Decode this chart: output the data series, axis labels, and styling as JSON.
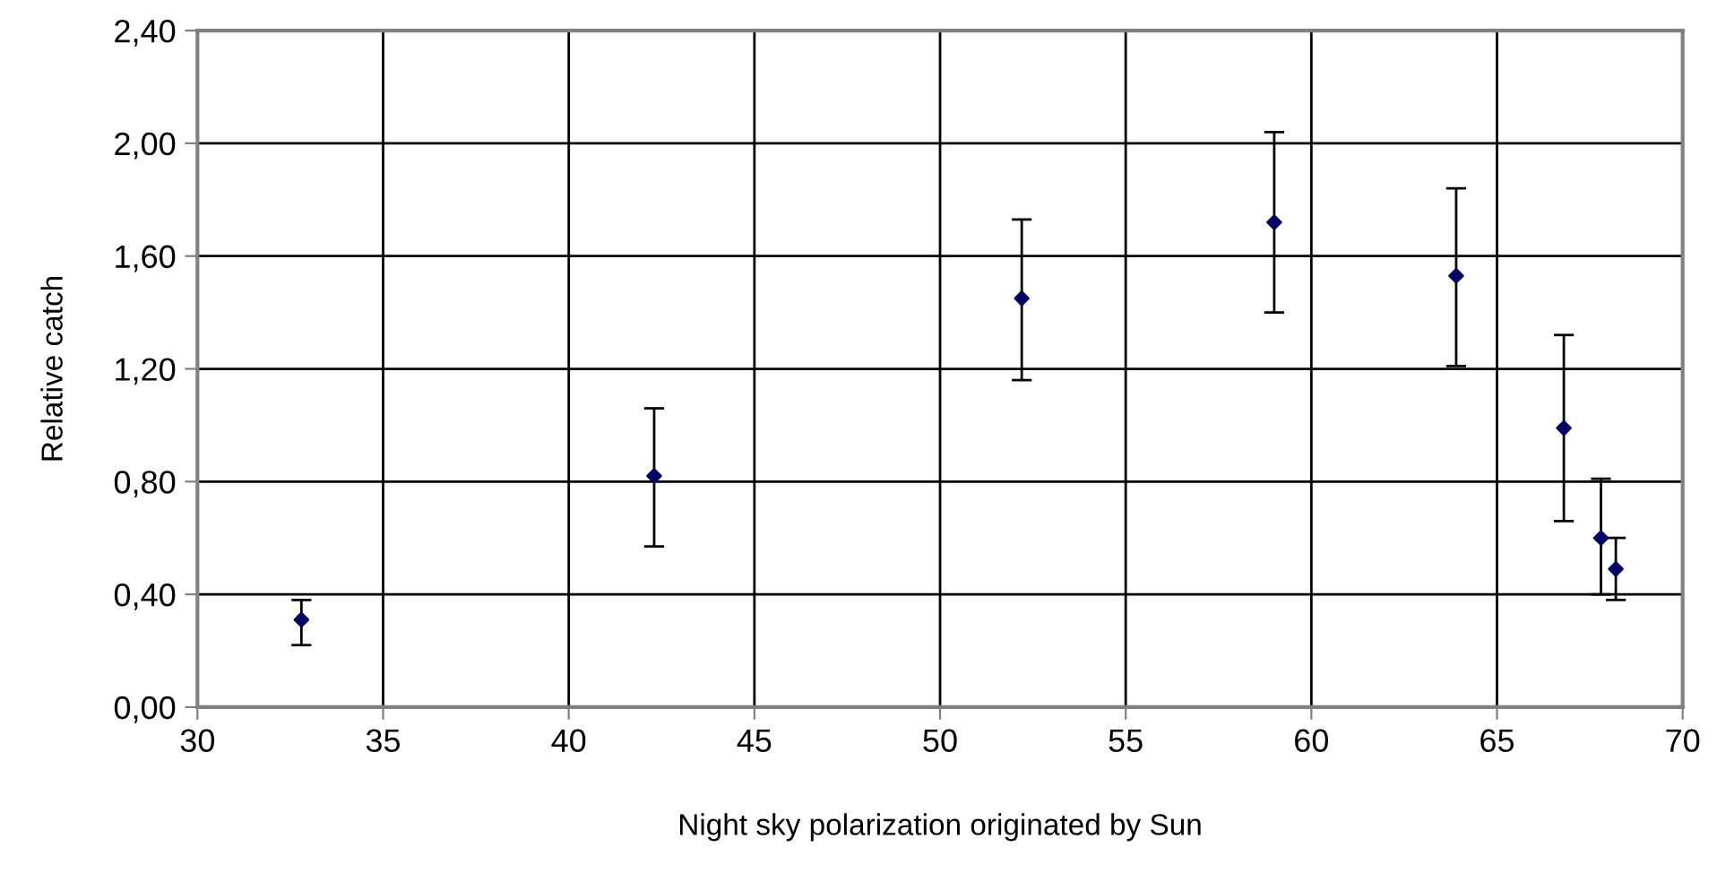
{
  "chart_data": {
    "type": "scatter",
    "xlabel": "Night sky polarization originated by Sun",
    "ylabel": "Relative catch",
    "x": [
      32.8,
      42.3,
      52.2,
      59.0,
      63.9,
      66.8,
      67.8,
      68.2
    ],
    "series": [
      {
        "color": "#000066",
        "values": [
          0.31,
          0.82,
          1.45,
          1.72,
          1.53,
          0.99,
          0.6,
          0.49
        ],
        "errors": [
          [
            0.22,
            0.38
          ],
          [
            0.57,
            1.06
          ],
          [
            1.16,
            1.73
          ],
          [
            1.4,
            2.04
          ],
          [
            1.21,
            1.84
          ],
          [
            0.66,
            1.32
          ],
          [
            0.4,
            0.81
          ],
          [
            0.38,
            0.6
          ]
        ]
      }
    ],
    "xlim": [
      30,
      70
    ],
    "xticks": [
      30,
      35,
      40,
      45,
      50,
      55,
      60,
      65,
      70
    ],
    "ylim": [
      0,
      2.4
    ],
    "yticks": [
      {
        "value": 0,
        "label": "0,00"
      },
      {
        "value": 0.4,
        "label": "0,40"
      },
      {
        "value": 0.8,
        "label": "0,80"
      },
      {
        "value": 1.2,
        "label": "1,20"
      },
      {
        "value": 1.6,
        "label": "1,60"
      },
      {
        "value": 2.0,
        "label": "2,00"
      },
      {
        "value": 2.4,
        "label": "2,40"
      }
    ],
    "grid": true,
    "marker": "diamond",
    "legend": false
  }
}
